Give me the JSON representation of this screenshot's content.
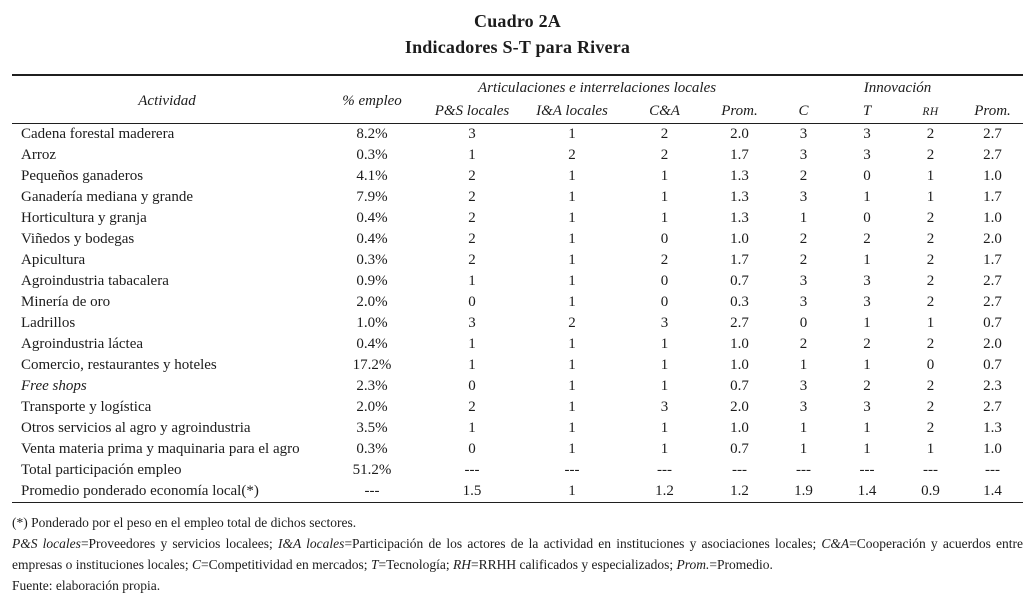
{
  "title": {
    "line1": "Cuadro 2A",
    "line2": "Indicadores S-T para Rivera"
  },
  "table": {
    "headers": {
      "actividad": "Actividad",
      "empleo": "% empleo",
      "group_articulaciones": "Articulaciones e interrelaciones locales",
      "group_innovacion": "Innovación",
      "sub": [
        "P&S locales",
        "I&A locales",
        "C&A",
        "Prom.",
        "C",
        "T",
        "RH",
        "Prom."
      ]
    },
    "rows": [
      {
        "actividad": "Cadena forestal maderera",
        "empleo": "8.2%",
        "italic": false,
        "values": [
          "3",
          "1",
          "2",
          "2.0",
          "3",
          "3",
          "2",
          "2.7"
        ]
      },
      {
        "actividad": "Arroz",
        "empleo": "0.3%",
        "italic": false,
        "values": [
          "1",
          "2",
          "2",
          "1.7",
          "3",
          "3",
          "2",
          "2.7"
        ]
      },
      {
        "actividad": "Pequeños ganaderos",
        "empleo": "4.1%",
        "italic": false,
        "values": [
          "2",
          "1",
          "1",
          "1.3",
          "2",
          "0",
          "1",
          "1.0"
        ]
      },
      {
        "actividad": "Ganadería mediana y grande",
        "empleo": "7.9%",
        "italic": false,
        "values": [
          "2",
          "1",
          "1",
          "1.3",
          "3",
          "1",
          "1",
          "1.7"
        ]
      },
      {
        "actividad": "Horticultura y granja",
        "empleo": "0.4%",
        "italic": false,
        "values": [
          "2",
          "1",
          "1",
          "1.3",
          "1",
          "0",
          "2",
          "1.0"
        ]
      },
      {
        "actividad": "Viñedos y bodegas",
        "empleo": "0.4%",
        "italic": false,
        "values": [
          "2",
          "1",
          "0",
          "1.0",
          "2",
          "2",
          "2",
          "2.0"
        ]
      },
      {
        "actividad": "Apicultura",
        "empleo": "0.3%",
        "italic": false,
        "values": [
          "2",
          "1",
          "2",
          "1.7",
          "2",
          "1",
          "2",
          "1.7"
        ]
      },
      {
        "actividad": "Agroindustria tabacalera",
        "empleo": "0.9%",
        "italic": false,
        "values": [
          "1",
          "1",
          "0",
          "0.7",
          "3",
          "3",
          "2",
          "2.7"
        ]
      },
      {
        "actividad": "Minería de oro",
        "empleo": "2.0%",
        "italic": false,
        "values": [
          "0",
          "1",
          "0",
          "0.3",
          "3",
          "3",
          "2",
          "2.7"
        ]
      },
      {
        "actividad": "Ladrillos",
        "empleo": "1.0%",
        "italic": false,
        "values": [
          "3",
          "2",
          "3",
          "2.7",
          "0",
          "1",
          "1",
          "0.7"
        ]
      },
      {
        "actividad": "Agroindustria láctea",
        "empleo": "0.4%",
        "italic": false,
        "values": [
          "1",
          "1",
          "1",
          "1.0",
          "2",
          "2",
          "2",
          "2.0"
        ]
      },
      {
        "actividad": "Comercio, restaurantes y hoteles",
        "empleo": "17.2%",
        "italic": false,
        "values": [
          "1",
          "1",
          "1",
          "1.0",
          "1",
          "1",
          "0",
          "0.7"
        ]
      },
      {
        "actividad": "Free shops",
        "empleo": "2.3%",
        "italic": true,
        "values": [
          "0",
          "1",
          "1",
          "0.7",
          "3",
          "2",
          "2",
          "2.3"
        ]
      },
      {
        "actividad": "Transporte y logística",
        "empleo": "2.0%",
        "italic": false,
        "values": [
          "2",
          "1",
          "3",
          "2.0",
          "3",
          "3",
          "2",
          "2.7"
        ]
      },
      {
        "actividad": "Otros servicios al agro y agroindustria",
        "empleo": "3.5%",
        "italic": false,
        "values": [
          "1",
          "1",
          "1",
          "1.0",
          "1",
          "1",
          "2",
          "1.3"
        ]
      },
      {
        "actividad": "Venta materia prima y maquinaria para el agro",
        "empleo": "0.3%",
        "italic": false,
        "values": [
          "0",
          "1",
          "1",
          "0.7",
          "1",
          "1",
          "1",
          "1.0"
        ]
      },
      {
        "actividad": "Total participación empleo",
        "empleo": "51.2%",
        "italic": false,
        "values": [
          "---",
          "---",
          "---",
          "---",
          "---",
          "---",
          "---",
          "---"
        ]
      },
      {
        "actividad": "Promedio ponderado economía local(*)",
        "empleo": "---",
        "italic": false,
        "values": [
          "1.5",
          "1",
          "1.2",
          "1.2",
          "1.9",
          "1.4",
          "0.9",
          "1.4"
        ]
      }
    ]
  },
  "footnotes": {
    "asterisk": "(*) Ponderado por el peso en el empleo total de dichos sectores.",
    "definitions": [
      {
        "t": "P&S locales",
        "i": true
      },
      {
        "t": "=Proveedores y servicios localees; ",
        "i": false
      },
      {
        "t": "I&A locales",
        "i": true
      },
      {
        "t": "=Participación de los actores de la actividad en instituciones y asociaciones locales; ",
        "i": false
      },
      {
        "t": "C&A",
        "i": true
      },
      {
        "t": "=Cooperación y acuerdos entre empresas o instituciones locales; ",
        "i": false
      },
      {
        "t": "C",
        "i": true
      },
      {
        "t": "=Competitividad en mercados; ",
        "i": false
      },
      {
        "t": "T",
        "i": true
      },
      {
        "t": "=Tecnología; ",
        "i": false
      },
      {
        "t": "RH",
        "i": true
      },
      {
        "t": "=RRHH calificados y especializados; ",
        "i": false
      },
      {
        "t": "Prom.",
        "i": true
      },
      {
        "t": "=Promedio.",
        "i": false
      }
    ],
    "source": "Fuente: elaboración propia."
  }
}
